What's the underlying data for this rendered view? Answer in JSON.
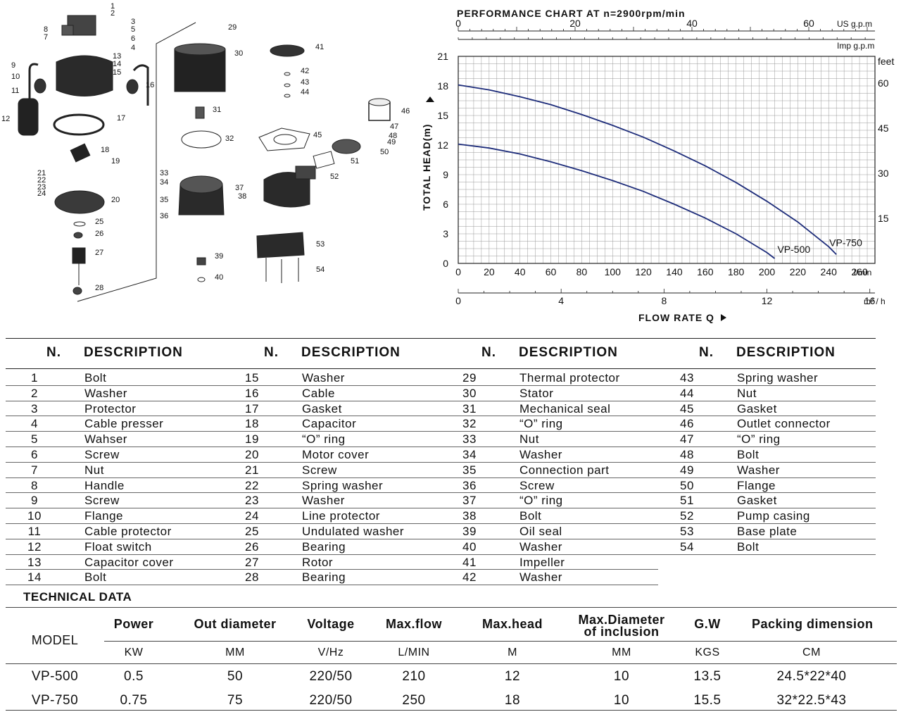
{
  "diagram": {
    "part_numbers": [
      "1",
      "2",
      "3",
      "4",
      "5",
      "6",
      "7",
      "8",
      "9",
      "10",
      "11",
      "12",
      "13",
      "14",
      "15",
      "16",
      "17",
      "18",
      "19",
      "20",
      "21",
      "22",
      "23",
      "24",
      "25",
      "26",
      "27",
      "28",
      "29",
      "30",
      "31",
      "32",
      "33",
      "34",
      "35",
      "36",
      "37",
      "38",
      "39",
      "40",
      "41",
      "42",
      "43",
      "44",
      "45",
      "46",
      "47",
      "48",
      "49",
      "50",
      "51",
      "52",
      "53",
      "54"
    ]
  },
  "chart_data": {
    "type": "line",
    "title": "PERFORMANCE CHART AT n=2900rpm/min",
    "xlabel": "FLOW RATE Q",
    "ylabel": "TOTAL HEAD(m)",
    "x_unit": "l/min",
    "y_unit": "m",
    "xlim": [
      0,
      270
    ],
    "ylim": [
      0,
      21
    ],
    "grid": true,
    "x_ticks": [
      0,
      20,
      40,
      60,
      80,
      100,
      120,
      140,
      160,
      180,
      200,
      220,
      240,
      260
    ],
    "y_ticks": [
      0,
      3,
      6,
      9,
      12,
      15,
      18,
      21
    ],
    "secondary_axes": {
      "top_usgpm": {
        "unit": "US g.p.m",
        "ticks": [
          0,
          20,
          40,
          60
        ]
      },
      "top_impgpm": {
        "unit": "Imp g.p.m"
      },
      "right_feet": {
        "unit": "feet",
        "ticks": [
          15,
          30,
          45,
          60
        ]
      },
      "bottom_m3h": {
        "unit": "m³ / h",
        "ticks": [
          0,
          4,
          8,
          12,
          16
        ]
      }
    },
    "series": [
      {
        "name": "VP-500",
        "x": [
          0,
          20,
          40,
          60,
          80,
          100,
          120,
          140,
          160,
          180,
          200,
          205
        ],
        "y": [
          12.1,
          11.7,
          11.1,
          10.3,
          9.4,
          8.4,
          7.3,
          6.0,
          4.6,
          3.0,
          1.1,
          0.5
        ]
      },
      {
        "name": "VP-750",
        "x": [
          0,
          20,
          40,
          60,
          80,
          100,
          120,
          140,
          160,
          180,
          200,
          220,
          240,
          245
        ],
        "y": [
          18.1,
          17.6,
          16.9,
          16.1,
          15.1,
          14.0,
          12.8,
          11.4,
          9.9,
          8.2,
          6.3,
          4.2,
          1.7,
          0.9
        ]
      }
    ]
  },
  "parts": {
    "header_no": "N.",
    "header_desc": "DESCRIPTION",
    "columns": [
      [
        [
          "1",
          "Bolt"
        ],
        [
          "2",
          "Washer"
        ],
        [
          "3",
          "Protector"
        ],
        [
          "4",
          "Cable presser"
        ],
        [
          "5",
          "Wahser"
        ],
        [
          "6",
          "Screw"
        ],
        [
          "7",
          "Nut"
        ],
        [
          "8",
          "Handle"
        ],
        [
          "9",
          "Screw"
        ],
        [
          "10",
          "Flange"
        ],
        [
          "11",
          "Cable protector"
        ],
        [
          "12",
          "Float switch"
        ],
        [
          "13",
          "Capacitor cover"
        ],
        [
          "14",
          "Bolt"
        ]
      ],
      [
        [
          "15",
          "Washer"
        ],
        [
          "16",
          "Cable"
        ],
        [
          "17",
          "Gasket"
        ],
        [
          "18",
          "Capacitor"
        ],
        [
          "19",
          "“O” ring"
        ],
        [
          "20",
          "Motor cover"
        ],
        [
          "21",
          "Screw"
        ],
        [
          "22",
          "Spring washer"
        ],
        [
          "23",
          "Washer"
        ],
        [
          "24",
          "Line protector"
        ],
        [
          "25",
          "Undulated washer"
        ],
        [
          "26",
          "Bearing"
        ],
        [
          "27",
          "Rotor"
        ],
        [
          "28",
          "Bearing"
        ]
      ],
      [
        [
          "29",
          "Thermal protector"
        ],
        [
          "30",
          "Stator"
        ],
        [
          "31",
          "Mechanical seal"
        ],
        [
          "32",
          "“O” ring"
        ],
        [
          "33",
          "Nut"
        ],
        [
          "34",
          "Washer"
        ],
        [
          "35",
          "Connection part"
        ],
        [
          "36",
          "Screw"
        ],
        [
          "37",
          "“O” ring"
        ],
        [
          "38",
          "Bolt"
        ],
        [
          "39",
          "Oil seal"
        ],
        [
          "40",
          "Washer"
        ],
        [
          "41",
          "Impeller"
        ],
        [
          "42",
          "Washer"
        ]
      ],
      [
        [
          "43",
          "Spring washer"
        ],
        [
          "44",
          "Nut"
        ],
        [
          "45",
          "Gasket"
        ],
        [
          "46",
          "Outlet connector"
        ],
        [
          "47",
          "“O” ring"
        ],
        [
          "48",
          "Bolt"
        ],
        [
          "49",
          "Washer"
        ],
        [
          "50",
          "Flange"
        ],
        [
          "51",
          "Gasket"
        ],
        [
          "52",
          "Pump casing"
        ],
        [
          "53",
          "Base plate"
        ],
        [
          "54",
          "Bolt"
        ]
      ]
    ]
  },
  "tech": {
    "title": "TECHNICAL DATA",
    "model_label": "MODEL",
    "headers": [
      "Power",
      "Out diameter",
      "Voltage",
      "Max.flow",
      "Max.head",
      "Max.Diameter|of inclusion",
      "G.W",
      "Packing dimension"
    ],
    "units": [
      "KW",
      "MM",
      "V/Hz",
      "L/MIN",
      "M",
      "MM",
      "KGS",
      "CM"
    ],
    "rows": [
      [
        "VP-500",
        "0.5",
        "50",
        "220/50",
        "210",
        "12",
        "10",
        "13.5",
        "24.5*22*40"
      ],
      [
        "VP-750",
        "0.75",
        "75",
        "220/50",
        "250",
        "18",
        "10",
        "15.5",
        "32*22.5*43"
      ]
    ]
  }
}
